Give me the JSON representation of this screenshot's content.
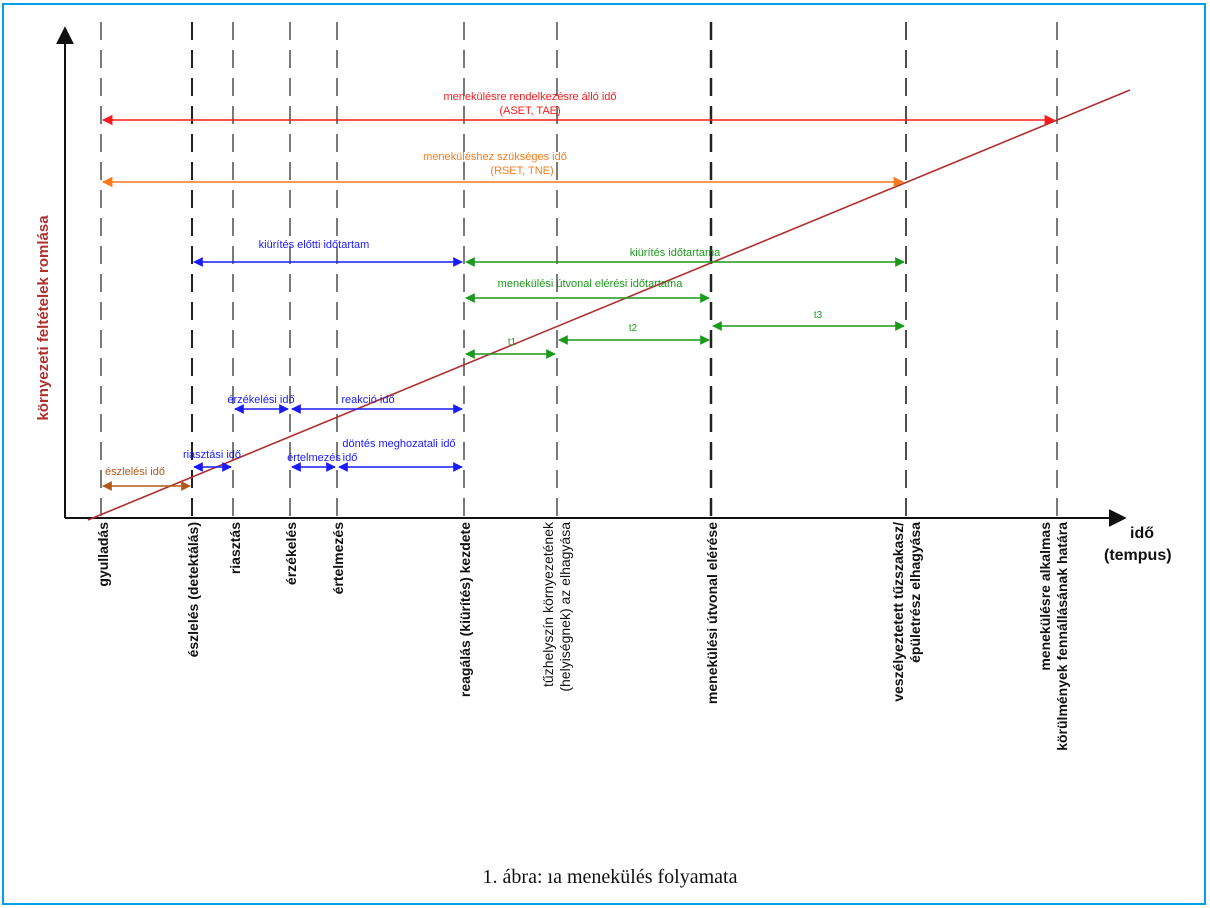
{
  "caption": "1. ábra: ıa menekülés folyamata",
  "axes": {
    "y_label": "környezeti feltételek romlása",
    "x_label_line1": "idő",
    "x_label_line2": "(tempus)"
  },
  "events": [
    {
      "id": "gyulladas",
      "label": "gyulladás"
    },
    {
      "id": "eszleles",
      "label": "észlelés (detektálás)"
    },
    {
      "id": "riasztas",
      "label": "riasztás"
    },
    {
      "id": "erzekeles",
      "label": "érzékelés"
    },
    {
      "id": "ertelmezes",
      "label": "értelmezés"
    },
    {
      "id": "reagalas",
      "label": "reagálás (kiürítés) kezdete"
    },
    {
      "id": "tuzhely_1",
      "label": "tűzhelyszín környezetének"
    },
    {
      "id": "tuzhely_2",
      "label": "(helyiségnek) az elhagyása"
    },
    {
      "id": "menekulesi",
      "label": "menekülési útvonal elérése"
    },
    {
      "id": "veszely_1",
      "label": "veszélyeztetett tűzszakasz/"
    },
    {
      "id": "veszely_2",
      "label": "épületrész elhagyása"
    },
    {
      "id": "hatar_1",
      "label": "menekülésre alkalmas"
    },
    {
      "id": "hatar_2",
      "label": "körülmények fennállásának határa"
    }
  ],
  "intervals": {
    "aset_line1": "menekülésre rendelkezésre álló idő",
    "aset_line2": "(ASET, TAE)",
    "rset_line1": "meneküléshez szükséges idő",
    "rset_line2": "(RSET, TNE)",
    "pre_evac": "kiürítés előtti időtartam",
    "evac": "kiürítés időtartama",
    "route_reach": "menekülési útvonal elérési időtartama",
    "t1": "t1",
    "t2": "t2",
    "t3": "t3",
    "detect_sense": "érzékelési idő",
    "reaction": "reakció idő",
    "alarm": "riasztási idő",
    "decision": "döntés meghozatali idő",
    "interp_a": "értelmezés",
    "interp_b": "idő",
    "detection": "észlelési idő"
  },
  "colors": {
    "border": "#00a0e6",
    "aset": "#ff1a1a",
    "rset": "#ff7a1a",
    "blue": "#1a1aff",
    "green": "#1a9a1a",
    "brown": "#b05a1a",
    "slope": "#b03030",
    "ylabel": "#b03030"
  }
}
